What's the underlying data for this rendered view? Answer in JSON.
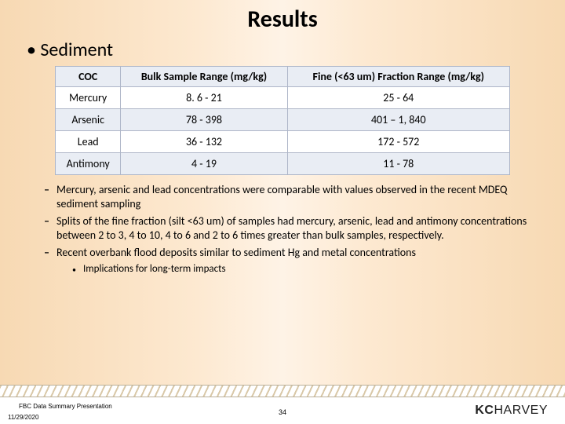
{
  "title": "Results",
  "main_bullet": "Sediment",
  "table": {
    "columns": [
      "COC",
      "Bulk Sample Range (mg/kg)",
      "Fine (<63 um) Fraction Range (mg/kg)"
    ],
    "rows": [
      [
        "Mercury",
        "8. 6 - 21",
        "25 - 64"
      ],
      [
        "Arsenic",
        "78 - 398",
        "401 – 1, 840"
      ],
      [
        "Lead",
        "36 - 132",
        "172 - 572"
      ],
      [
        "Antimony",
        "4 - 19",
        "11 - 78"
      ]
    ],
    "header_bg": "#e9edf4",
    "row_odd_bg": "#ffffff",
    "row_even_bg": "#e9edf4",
    "border_color": "#aeb6c8",
    "font_size": 14
  },
  "sub_bullets": [
    "Mercury, arsenic and lead concentrations were comparable with values observed in the recent MDEQ sediment sampling",
    "Splits of the fine fraction (silt <63 um) of samples had mercury, arsenic, lead and antimony concentrations between 2 to 3, 4 to 10, 4 to 6 and 2 to 6 times greater than bulk samples, respectively.",
    "Recent overbank flood deposits similar to sediment Hg and metal concentrations"
  ],
  "sub_sub_bullet": "Implications for long-term impacts",
  "footer": {
    "presentation_name": "FBC Data Summary Presentation",
    "date": "11/29/2020",
    "page_number": "34",
    "logo_kc": "KC",
    "logo_harvey": "HARVEY"
  },
  "colors": {
    "bg_gradient_edge": "#f7d9b3",
    "bg_gradient_mid": "#fef3e6",
    "text": "#000000",
    "footer_white": "#ffffff"
  }
}
